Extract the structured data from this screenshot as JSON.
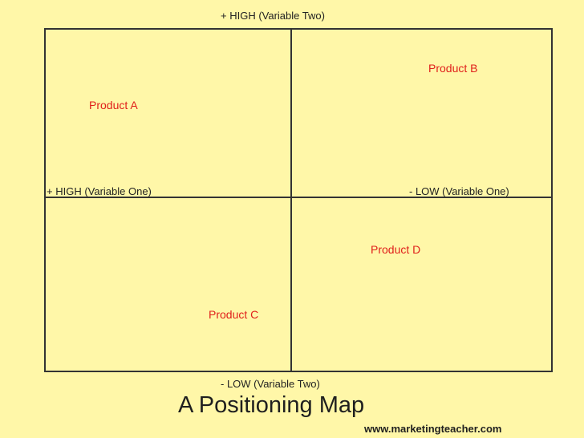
{
  "axes": {
    "top_label": "+ HIGH (Variable Two)",
    "bottom_label": "- LOW (Variable Two)",
    "left_label": "+ HIGH (Variable One)",
    "right_label": "- LOW (Variable One)"
  },
  "products": [
    {
      "label": "Product A"
    },
    {
      "label": "Product B"
    },
    {
      "label": "Product C"
    },
    {
      "label": "Product D"
    }
  ],
  "title": "A Positioning Map",
  "website": "www.marketingteacher.com",
  "colors": {
    "background": "#fff7a8",
    "product_text": "#e0201b",
    "lines": "#333333",
    "text": "#222222"
  }
}
